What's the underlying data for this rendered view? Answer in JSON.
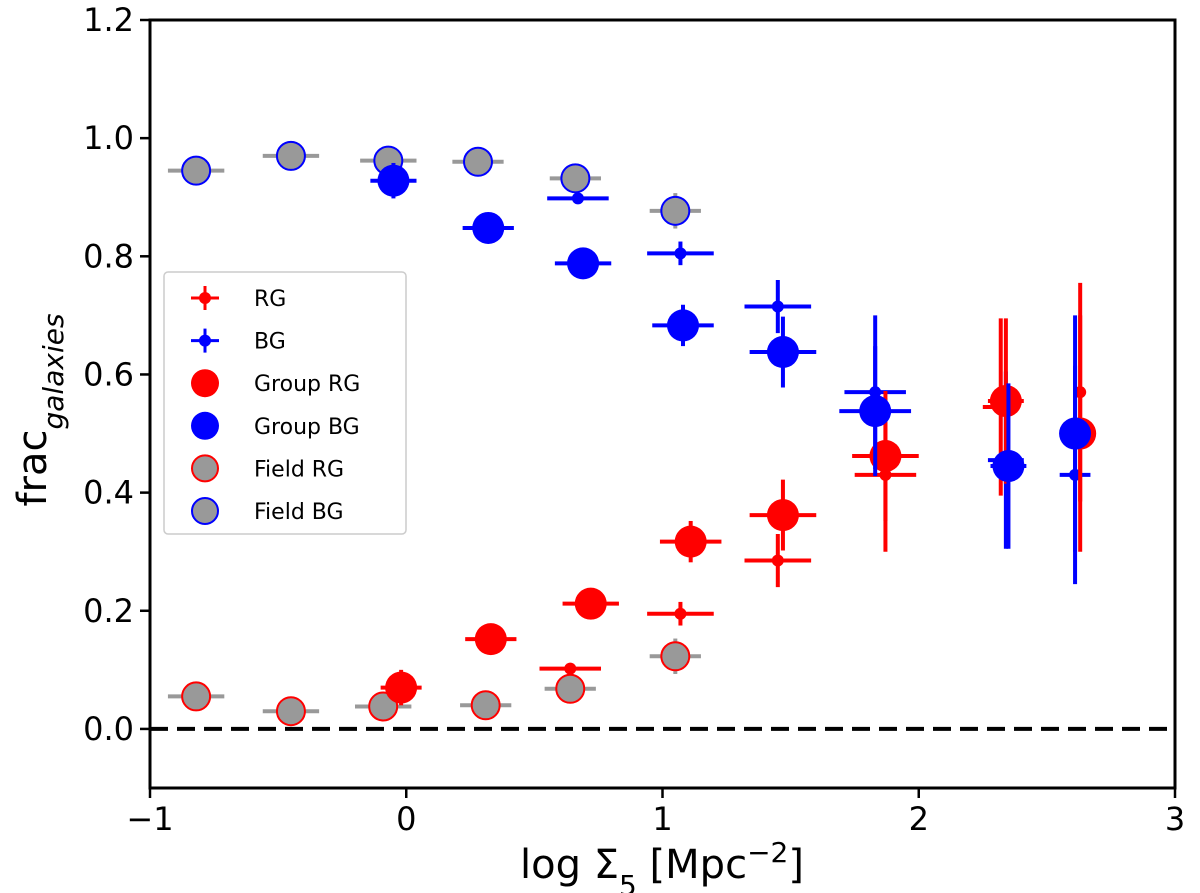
{
  "chart_data": {
    "type": "scatter",
    "title": "",
    "xlabel": "log Σ5 [Mpc−2]",
    "xlabel_parts": {
      "main": "log Σ",
      "sub": "5",
      "mid": " [Mpc",
      "sup": "−2",
      "end": "]"
    },
    "ylabel_parts": {
      "main": "frac",
      "sub": "galaxies"
    },
    "xlim": [
      -1,
      3
    ],
    "ylim": [
      -0.1,
      1.2
    ],
    "xticks": [
      -1,
      0,
      1,
      2,
      3
    ],
    "xtick_labels": [
      "−1",
      "0",
      "1",
      "2",
      "3"
    ],
    "yticks": [
      0.0,
      0.2,
      0.4,
      0.6,
      0.8,
      1.0,
      1.2
    ],
    "ytick_labels": [
      "0.0",
      "0.2",
      "0.4",
      "0.6",
      "0.8",
      "1.0",
      "1.2"
    ],
    "hline": {
      "y": 0.0,
      "style": "dashed",
      "color": "#000000"
    },
    "legend": {
      "position": "center-left",
      "entries": [
        {
          "label": "RG",
          "kind": "small"
        },
        {
          "label": "BG",
          "kind": "small"
        },
        {
          "label": "Group RG",
          "kind": "group"
        },
        {
          "label": "Group BG",
          "kind": "group"
        },
        {
          "label": "Field RG",
          "kind": "field"
        },
        {
          "label": "Field BG",
          "kind": "field"
        }
      ]
    },
    "series": [
      {
        "name": "RG",
        "kind": "small",
        "color": "#ff0000",
        "edge": "#ff0000",
        "points": [
          {
            "x": 0.64,
            "y": 0.102,
            "xerr": 0.12,
            "yerr": 0.0
          },
          {
            "x": 1.07,
            "y": 0.195,
            "xerr": 0.13,
            "yerr": 0.02
          },
          {
            "x": 1.45,
            "y": 0.285,
            "xerr": 0.13,
            "yerr": 0.045
          },
          {
            "x": 1.87,
            "y": 0.43,
            "xerr": 0.12,
            "yerr": 0.13
          },
          {
            "x": 2.32,
            "y": 0.545,
            "xerr": 0.07,
            "yerr": 0.15
          },
          {
            "x": 2.63,
            "y": 0.57,
            "xerr": 0.0,
            "yerr": 0.185
          }
        ]
      },
      {
        "name": "BG",
        "kind": "small",
        "color": "#0000ff",
        "edge": "#0000ff",
        "points": [
          {
            "x": 0.67,
            "y": 0.898,
            "xerr": 0.12,
            "yerr": 0.0
          },
          {
            "x": 1.07,
            "y": 0.805,
            "xerr": 0.13,
            "yerr": 0.02
          },
          {
            "x": 1.45,
            "y": 0.715,
            "xerr": 0.13,
            "yerr": 0.045
          },
          {
            "x": 1.83,
            "y": 0.57,
            "xerr": 0.12,
            "yerr": 0.13
          },
          {
            "x": 2.34,
            "y": 0.455,
            "xerr": 0.07,
            "yerr": 0.15
          },
          {
            "x": 2.61,
            "y": 0.43,
            "xerr": 0.06,
            "yerr": 0.185
          }
        ]
      },
      {
        "name": "Group RG",
        "kind": "group",
        "color": "#ff0000",
        "edge": "#ff0000",
        "points": [
          {
            "x": -0.02,
            "y": 0.07,
            "xerr": 0.08,
            "yerr": 0.03
          },
          {
            "x": 0.33,
            "y": 0.152,
            "xerr": 0.1,
            "yerr": 0.0
          },
          {
            "x": 0.72,
            "y": 0.212,
            "xerr": 0.11,
            "yerr": 0.0
          },
          {
            "x": 1.11,
            "y": 0.317,
            "xerr": 0.12,
            "yerr": 0.035
          },
          {
            "x": 1.47,
            "y": 0.362,
            "xerr": 0.13,
            "yerr": 0.06
          },
          {
            "x": 1.87,
            "y": 0.462,
            "xerr": 0.13,
            "yerr": 0.11
          },
          {
            "x": 2.34,
            "y": 0.555,
            "xerr": 0.07,
            "yerr": 0.14
          },
          {
            "x": 2.63,
            "y": 0.5,
            "xerr": 0.0,
            "yerr": 0.2
          }
        ]
      },
      {
        "name": "Group BG",
        "kind": "group",
        "color": "#0000ff",
        "edge": "#0000ff",
        "points": [
          {
            "x": -0.05,
            "y": 0.928,
            "xerr": 0.09,
            "yerr": 0.03
          },
          {
            "x": 0.32,
            "y": 0.848,
            "xerr": 0.1,
            "yerr": 0.0
          },
          {
            "x": 0.69,
            "y": 0.788,
            "xerr": 0.11,
            "yerr": 0.0
          },
          {
            "x": 1.08,
            "y": 0.683,
            "xerr": 0.12,
            "yerr": 0.035
          },
          {
            "x": 1.47,
            "y": 0.638,
            "xerr": 0.13,
            "yerr": 0.06
          },
          {
            "x": 1.83,
            "y": 0.538,
            "xerr": 0.14,
            "yerr": 0.11
          },
          {
            "x": 2.35,
            "y": 0.445,
            "xerr": 0.07,
            "yerr": 0.14
          },
          {
            "x": 2.61,
            "y": 0.5,
            "xerr": 0.06,
            "yerr": 0.2
          }
        ]
      },
      {
        "name": "Field RG",
        "kind": "field",
        "color": "#999999",
        "edge": "#ff0000",
        "points": [
          {
            "x": -0.82,
            "y": 0.055,
            "xerr": 0.11,
            "yerr": 0.0
          },
          {
            "x": -0.45,
            "y": 0.03,
            "xerr": 0.11,
            "yerr": 0.0
          },
          {
            "x": -0.09,
            "y": 0.038,
            "xerr": 0.11,
            "yerr": 0.0
          },
          {
            "x": 0.31,
            "y": 0.04,
            "xerr": 0.1,
            "yerr": 0.0
          },
          {
            "x": 0.64,
            "y": 0.068,
            "xerr": 0.1,
            "yerr": 0.0
          },
          {
            "x": 1.05,
            "y": 0.123,
            "xerr": 0.1,
            "yerr": 0.03
          }
        ]
      },
      {
        "name": "Field BG",
        "kind": "field",
        "color": "#999999",
        "edge": "#0000ff",
        "points": [
          {
            "x": -0.82,
            "y": 0.945,
            "xerr": 0.11,
            "yerr": 0.0
          },
          {
            "x": -0.45,
            "y": 0.97,
            "xerr": 0.11,
            "yerr": 0.0
          },
          {
            "x": -0.07,
            "y": 0.962,
            "xerr": 0.11,
            "yerr": 0.0
          },
          {
            "x": 0.28,
            "y": 0.96,
            "xerr": 0.1,
            "yerr": 0.0
          },
          {
            "x": 0.66,
            "y": 0.932,
            "xerr": 0.1,
            "yerr": 0.0
          },
          {
            "x": 1.05,
            "y": 0.877,
            "xerr": 0.1,
            "yerr": 0.03
          }
        ]
      }
    ]
  }
}
